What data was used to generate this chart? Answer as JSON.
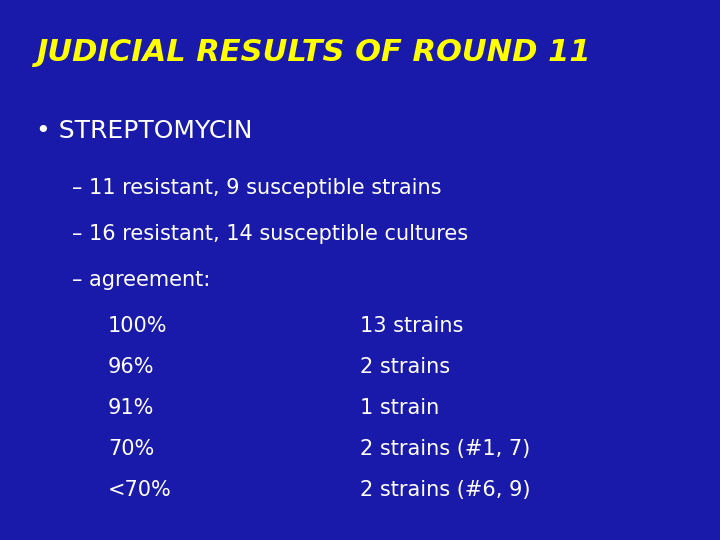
{
  "background_color": "#1a1aaa",
  "title": "JUDICIAL RESULTS OF ROUND 11",
  "title_color": "#ffff00",
  "title_fontsize": 22,
  "content_color": "#ffffff",
  "bullet_item": "• STREPTOMYCIN",
  "bullet_fontsize": 18,
  "dash_items": [
    "– 11 resistant, 9 susceptible strains",
    "– 16 resistant, 14 susceptible cultures",
    "– agreement:"
  ],
  "dash_fontsize": 15,
  "table_left": [
    "100%",
    "96%",
    "91%",
    "70%",
    "<70%"
  ],
  "table_right": [
    "13 strains",
    "2 strains",
    "1 strain",
    "2 strains (#1, 7)",
    "2 strains (#6, 9)"
  ],
  "table_fontsize": 15,
  "figsize": [
    7.2,
    5.4
  ],
  "dpi": 100
}
